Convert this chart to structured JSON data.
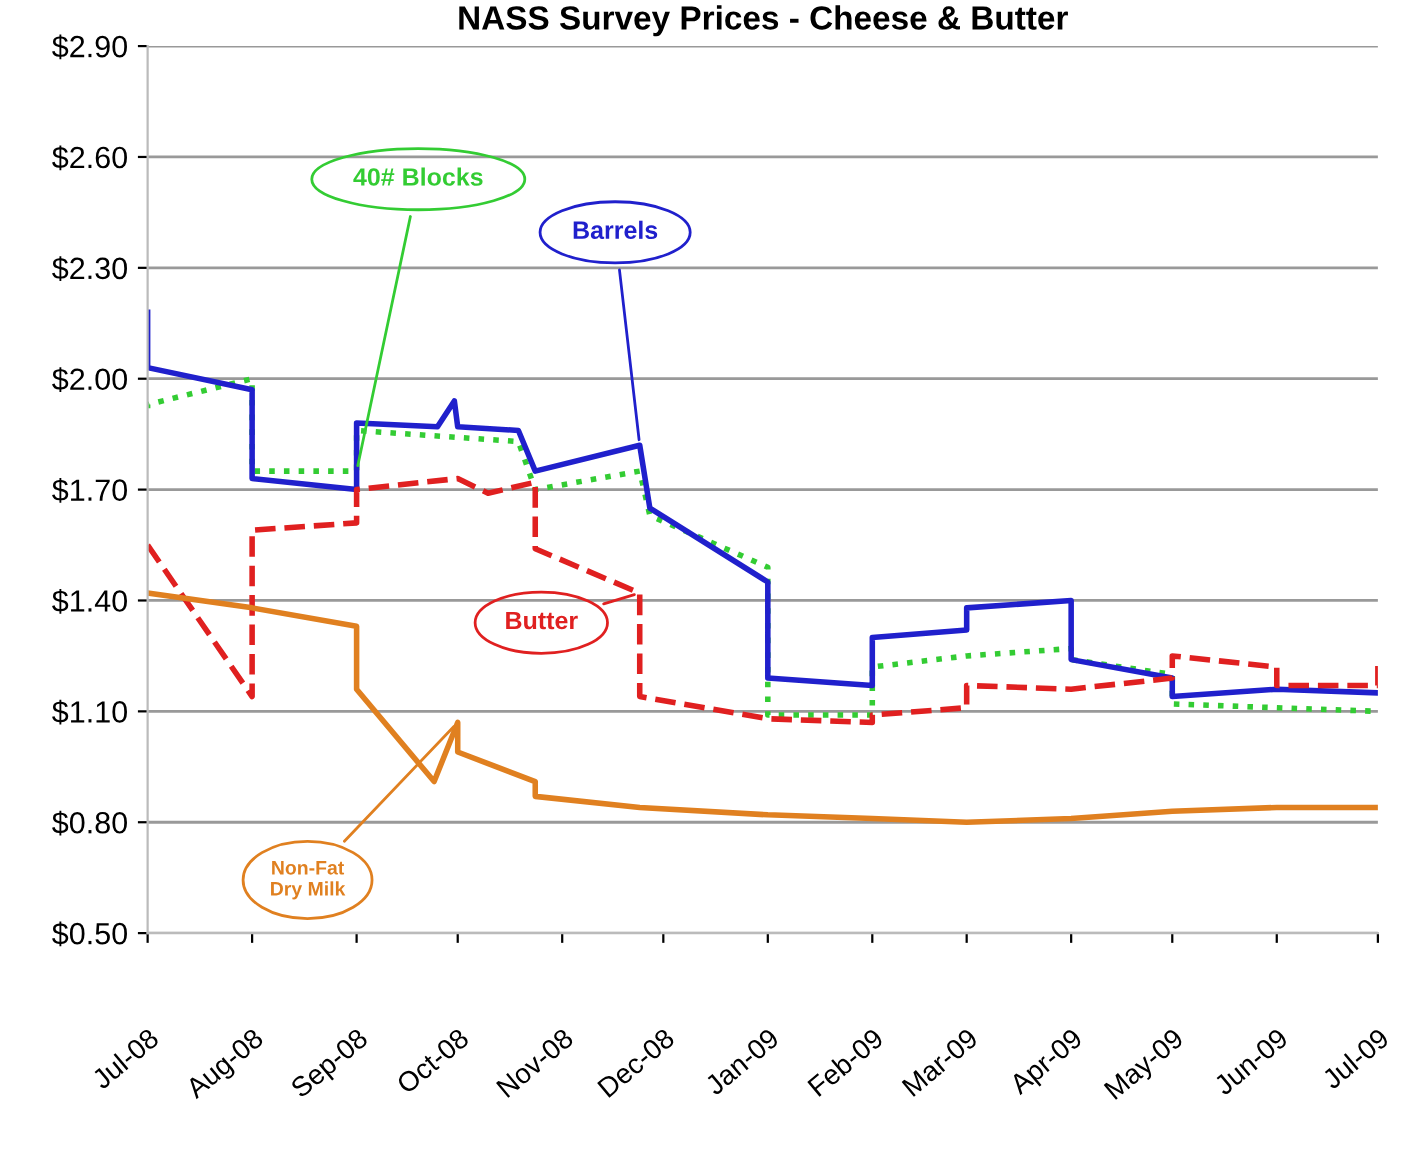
{
  "chart_data": {
    "type": "line",
    "title": "NASS Survey Prices - Cheese & Butter",
    "xlim": [
      "2008-07-01",
      "2009-07-01"
    ],
    "xticks": [
      {
        "value": "2008-07-01",
        "label": "Jul-08"
      },
      {
        "value": "2008-08-01",
        "label": "Aug-08"
      },
      {
        "value": "2008-09-01",
        "label": "Sep-08"
      },
      {
        "value": "2008-10-01",
        "label": "Oct-08"
      },
      {
        "value": "2008-11-01",
        "label": "Nov-08"
      },
      {
        "value": "2008-12-01",
        "label": "Dec-08"
      },
      {
        "value": "2009-01-01",
        "label": "Jan-09"
      },
      {
        "value": "2009-02-01",
        "label": "Feb-09"
      },
      {
        "value": "2009-03-01",
        "label": "Mar-09"
      },
      {
        "value": "2009-04-01",
        "label": "Apr-09"
      },
      {
        "value": "2009-05-01",
        "label": "May-09"
      },
      {
        "value": "2009-06-01",
        "label": "Jun-09"
      },
      {
        "value": "2009-07-01",
        "label": "Jul-09"
      }
    ],
    "ylim": [
      0.5,
      2.9
    ],
    "yticks": [
      {
        "value": 0.5,
        "label": "$0.50"
      },
      {
        "value": 0.8,
        "label": "$0.80"
      },
      {
        "value": 1.1,
        "label": "$1.10"
      },
      {
        "value": 1.4,
        "label": "$1.40"
      },
      {
        "value": 1.7,
        "label": "$1.70"
      },
      {
        "value": 2.0,
        "label": "$2.00"
      },
      {
        "value": 2.3,
        "label": "$2.30"
      },
      {
        "value": 2.6,
        "label": "$2.60"
      },
      {
        "value": 2.9,
        "label": "$2.90"
      }
    ],
    "grid": "y",
    "legend": false,
    "series": [
      {
        "name": "40# Blocks",
        "color": "#33cc33",
        "line_style": "dotted",
        "x": [
          "2008-07-01",
          "2008-07-01",
          "2008-08-01",
          "2008-08-01",
          "2008-09-01",
          "2008-09-01",
          "2008-10-19",
          "2008-10-24",
          "2008-11-24",
          "2008-11-27",
          "2009-01-01",
          "2009-01-01",
          "2009-02-01",
          "2009-02-01",
          "2009-03-01",
          "2009-04-01",
          "2009-04-01",
          "2009-05-01",
          "2009-05-01",
          "2009-07-01"
        ],
        "values": [
          1.92,
          1.93,
          2.0,
          1.75,
          1.75,
          1.86,
          1.83,
          1.7,
          1.75,
          1.63,
          1.49,
          1.09,
          1.09,
          1.22,
          1.25,
          1.27,
          1.24,
          1.2,
          1.12,
          1.1
        ]
      },
      {
        "name": "Barrels",
        "color": "#2020cc",
        "line_style": "solid",
        "x": [
          "2008-07-01",
          "2008-07-01",
          "2008-08-01",
          "2008-08-01",
          "2008-09-01",
          "2008-09-01",
          "2008-09-25",
          "2008-09-30",
          "2008-10-01",
          "2008-10-19",
          "2008-10-24",
          "2008-11-24",
          "2008-11-27",
          "2009-01-01",
          "2009-01-01",
          "2009-02-01",
          "2009-02-01",
          "2009-03-01",
          "2009-03-01",
          "2009-04-01",
          "2009-04-01",
          "2009-05-01",
          "2009-05-01",
          "2009-06-01",
          "2009-07-01"
        ],
        "values": [
          2.18,
          2.03,
          1.97,
          1.73,
          1.7,
          1.88,
          1.87,
          1.94,
          1.87,
          1.86,
          1.75,
          1.82,
          1.65,
          1.45,
          1.19,
          1.17,
          1.3,
          1.32,
          1.38,
          1.4,
          1.24,
          1.19,
          1.14,
          1.16,
          1.15
        ]
      },
      {
        "name": "Butter",
        "color": "#e02020",
        "line_style": "dashed",
        "x": [
          "2008-07-01",
          "2008-08-01",
          "2008-08-01",
          "2008-09-01",
          "2008-09-01",
          "2008-10-01",
          "2008-10-10",
          "2008-10-24",
          "2008-10-24",
          "2008-11-24",
          "2008-11-24",
          "2009-01-01",
          "2009-02-01",
          "2009-02-01",
          "2009-03-01",
          "2009-03-01",
          "2009-04-01",
          "2009-05-01",
          "2009-05-01",
          "2009-06-01",
          "2009-06-01",
          "2009-07-01",
          "2009-07-01"
        ],
        "values": [
          1.55,
          1.14,
          1.59,
          1.61,
          1.7,
          1.73,
          1.69,
          1.72,
          1.54,
          1.42,
          1.14,
          1.08,
          1.07,
          1.09,
          1.11,
          1.17,
          1.16,
          1.19,
          1.25,
          1.22,
          1.17,
          1.17,
          1.24
        ]
      },
      {
        "name": "Non-Fat\nDry Milk",
        "color": "#e08020",
        "line_style": "solid",
        "x": [
          "2008-07-01",
          "2008-08-01",
          "2008-09-01",
          "2008-09-01",
          "2008-09-24",
          "2008-10-01",
          "2008-10-01",
          "2008-10-24",
          "2008-10-24",
          "2008-11-24",
          "2009-01-01",
          "2009-02-01",
          "2009-03-01",
          "2009-04-01",
          "2009-05-01",
          "2009-06-01",
          "2009-07-01"
        ],
        "values": [
          1.42,
          1.38,
          1.33,
          1.16,
          0.91,
          1.07,
          0.99,
          0.91,
          0.87,
          0.84,
          0.82,
          0.81,
          0.8,
          0.81,
          0.83,
          0.84,
          0.84
        ]
      }
    ]
  }
}
